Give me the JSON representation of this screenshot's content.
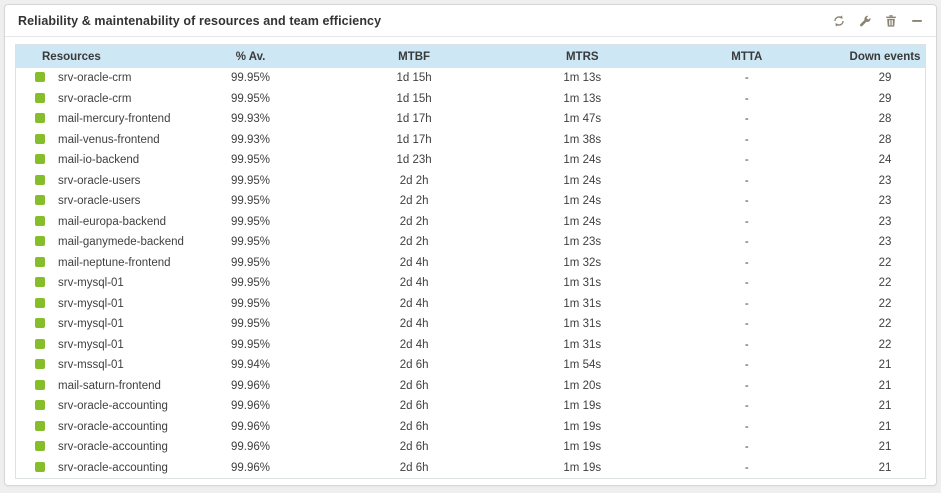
{
  "widget": {
    "title": "Reliability & maintenability of resources and team efficiency",
    "toolbar_icons": [
      "refresh",
      "wrench",
      "trash",
      "minimize"
    ]
  },
  "table": {
    "columns": [
      "Resources",
      "% Av.",
      "MTBF",
      "MTRS",
      "MTTA",
      "Down events"
    ],
    "rows": [
      {
        "status": "ok",
        "resource": "srv-oracle-crm",
        "availability": "99.95%",
        "mtbf": "1d 15h",
        "mtrs": "1m 13s",
        "mtta": "-",
        "down_events": "29"
      },
      {
        "status": "ok",
        "resource": "srv-oracle-crm",
        "availability": "99.95%",
        "mtbf": "1d 15h",
        "mtrs": "1m 13s",
        "mtta": "-",
        "down_events": "29"
      },
      {
        "status": "ok",
        "resource": "mail-mercury-frontend",
        "availability": "99.93%",
        "mtbf": "1d 17h",
        "mtrs": "1m 47s",
        "mtta": "-",
        "down_events": "28"
      },
      {
        "status": "ok",
        "resource": "mail-venus-frontend",
        "availability": "99.93%",
        "mtbf": "1d 17h",
        "mtrs": "1m 38s",
        "mtta": "-",
        "down_events": "28"
      },
      {
        "status": "ok",
        "resource": "mail-io-backend",
        "availability": "99.95%",
        "mtbf": "1d 23h",
        "mtrs": "1m 24s",
        "mtta": "-",
        "down_events": "24"
      },
      {
        "status": "ok",
        "resource": "srv-oracle-users",
        "availability": "99.95%",
        "mtbf": "2d 2h",
        "mtrs": "1m 24s",
        "mtta": "-",
        "down_events": "23"
      },
      {
        "status": "ok",
        "resource": "srv-oracle-users",
        "availability": "99.95%",
        "mtbf": "2d 2h",
        "mtrs": "1m 24s",
        "mtta": "-",
        "down_events": "23"
      },
      {
        "status": "ok",
        "resource": "mail-europa-backend",
        "availability": "99.95%",
        "mtbf": "2d 2h",
        "mtrs": "1m 24s",
        "mtta": "-",
        "down_events": "23"
      },
      {
        "status": "ok",
        "resource": "mail-ganymede-backend",
        "availability": "99.95%",
        "mtbf": "2d 2h",
        "mtrs": "1m 23s",
        "mtta": "-",
        "down_events": "23"
      },
      {
        "status": "ok",
        "resource": "mail-neptune-frontend",
        "availability": "99.95%",
        "mtbf": "2d 4h",
        "mtrs": "1m 32s",
        "mtta": "-",
        "down_events": "22"
      },
      {
        "status": "ok",
        "resource": "srv-mysql-01",
        "availability": "99.95%",
        "mtbf": "2d 4h",
        "mtrs": "1m 31s",
        "mtta": "-",
        "down_events": "22"
      },
      {
        "status": "ok",
        "resource": "srv-mysql-01",
        "availability": "99.95%",
        "mtbf": "2d 4h",
        "mtrs": "1m 31s",
        "mtta": "-",
        "down_events": "22"
      },
      {
        "status": "ok",
        "resource": "srv-mysql-01",
        "availability": "99.95%",
        "mtbf": "2d 4h",
        "mtrs": "1m 31s",
        "mtta": "-",
        "down_events": "22"
      },
      {
        "status": "ok",
        "resource": "srv-mysql-01",
        "availability": "99.95%",
        "mtbf": "2d 4h",
        "mtrs": "1m 31s",
        "mtta": "-",
        "down_events": "22"
      },
      {
        "status": "ok",
        "resource": "srv-mssql-01",
        "availability": "99.94%",
        "mtbf": "2d 6h",
        "mtrs": "1m 54s",
        "mtta": "-",
        "down_events": "21"
      },
      {
        "status": "ok",
        "resource": "mail-saturn-frontend",
        "availability": "99.96%",
        "mtbf": "2d 6h",
        "mtrs": "1m 20s",
        "mtta": "-",
        "down_events": "21"
      },
      {
        "status": "ok",
        "resource": "srv-oracle-accounting",
        "availability": "99.96%",
        "mtbf": "2d 6h",
        "mtrs": "1m 19s",
        "mtta": "-",
        "down_events": "21"
      },
      {
        "status": "ok",
        "resource": "srv-oracle-accounting",
        "availability": "99.96%",
        "mtbf": "2d 6h",
        "mtrs": "1m 19s",
        "mtta": "-",
        "down_events": "21"
      },
      {
        "status": "ok",
        "resource": "srv-oracle-accounting",
        "availability": "99.96%",
        "mtbf": "2d 6h",
        "mtrs": "1m 19s",
        "mtta": "-",
        "down_events": "21"
      },
      {
        "status": "ok",
        "resource": "srv-oracle-accounting",
        "availability": "99.96%",
        "mtbf": "2d 6h",
        "mtrs": "1m 19s",
        "mtta": "-",
        "down_events": "21"
      }
    ]
  },
  "colors": {
    "status_ok": "#86BD2B",
    "header_bg": "#CEE7F5",
    "text_main": "#3F3F3F",
    "icon_gray": "#8B8272"
  }
}
